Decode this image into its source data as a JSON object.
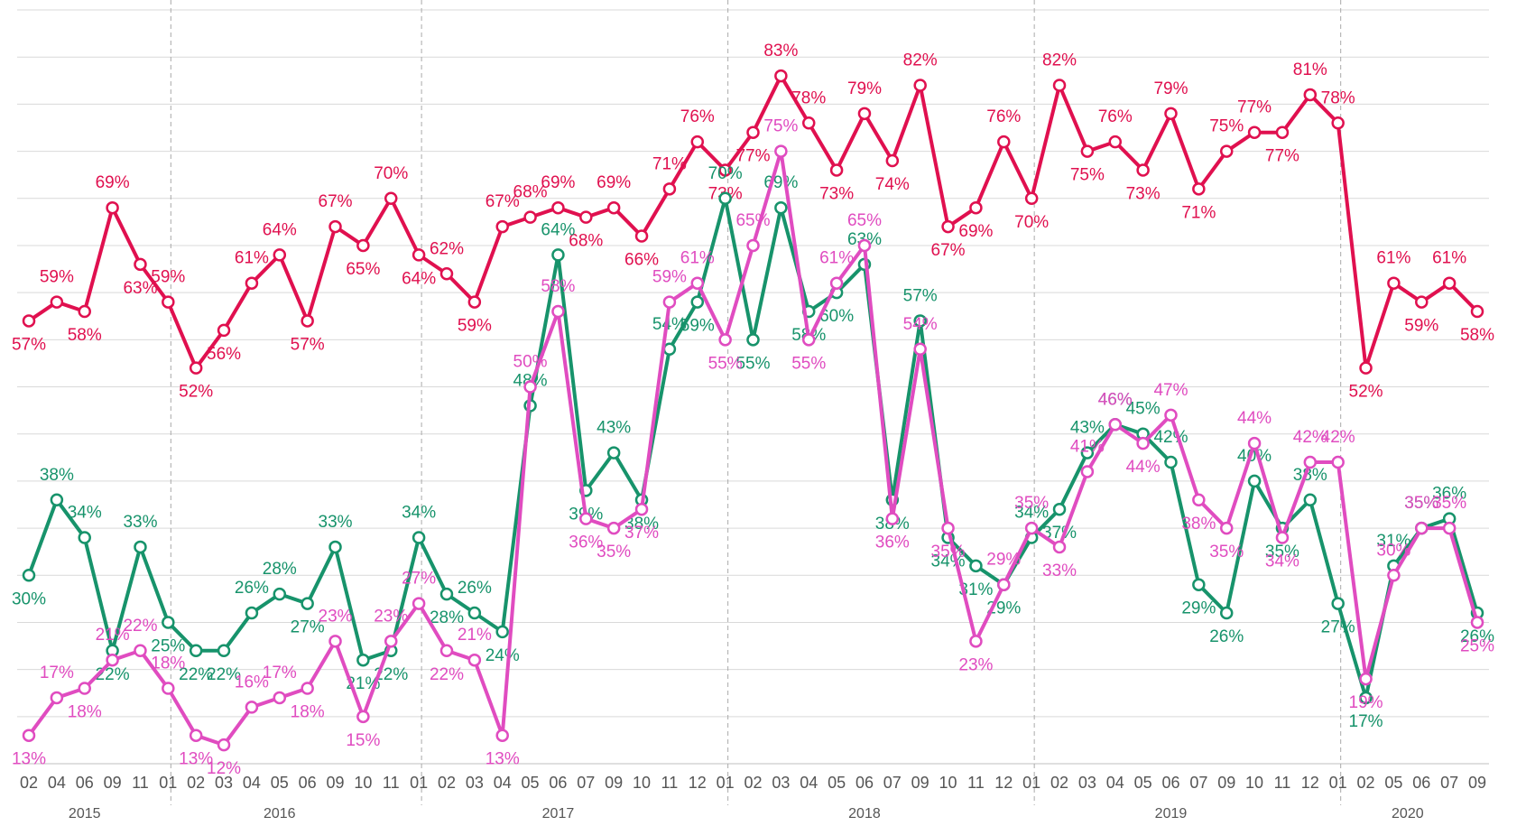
{
  "chart_data": {
    "type": "line",
    "categories": [
      "02",
      "04",
      "06",
      "09",
      "11",
      "01",
      "02",
      "03",
      "04",
      "05",
      "06",
      "09",
      "10",
      "11",
      "01",
      "02",
      "03",
      "04",
      "05",
      "06",
      "07",
      "09",
      "10",
      "11",
      "12",
      "01",
      "02",
      "03",
      "04",
      "05",
      "06",
      "07",
      "09",
      "10",
      "11",
      "12",
      "01",
      "02",
      "03",
      "04",
      "05",
      "06",
      "07",
      "09",
      "10",
      "11",
      "12",
      "01",
      "02",
      "05",
      "06",
      "07",
      "09"
    ],
    "category_groups": [
      {
        "label": "2015",
        "size": 5
      },
      {
        "label": "2016",
        "size": 9
      },
      {
        "label": "2017",
        "size": 11
      },
      {
        "label": "2018",
        "size": 11
      },
      {
        "label": "2019",
        "size": 11
      },
      {
        "label": "2020",
        "size": 6
      }
    ],
    "series": [
      {
        "color": "#e0104f",
        "values": [
          57,
          59,
          58,
          69,
          63,
          59,
          52,
          56,
          61,
          64,
          57,
          67,
          65,
          70,
          64,
          62,
          59,
          67,
          68,
          69,
          68,
          69,
          66,
          71,
          76,
          73,
          77,
          83,
          78,
          73,
          79,
          74,
          82,
          67,
          69,
          76,
          70,
          82,
          75,
          76,
          73,
          79,
          71,
          75,
          77,
          77,
          81,
          78,
          52,
          61,
          59,
          61,
          58
        ],
        "value_labels": [
          "57%",
          "59%",
          "58%",
          "69%",
          "63%",
          "59%",
          "52%",
          "56%",
          "61%",
          "64%",
          "57%",
          "67%",
          "65%",
          "70%",
          "64%",
          "62%",
          "59%",
          "67%",
          "68%",
          "69%",
          "68%",
          "69%",
          "66%",
          "71%",
          "76%",
          "73%",
          "77%",
          "83%",
          "78%",
          "73%",
          "79%",
          "74%",
          "82%",
          "67%",
          "69%",
          "76%",
          "70%",
          "82%",
          "75%",
          "76%",
          "73%",
          "79%",
          "71%",
          "75%",
          "77%",
          "77%",
          "81%",
          "78%",
          "52%",
          "61%",
          "59%",
          "61%",
          "58%"
        ]
      },
      {
        "color": "#17936b",
        "values": [
          30,
          38,
          34,
          22,
          33,
          25,
          22,
          22,
          26,
          28,
          27,
          33,
          21,
          22,
          34,
          28,
          26,
          24,
          48,
          64,
          39,
          43,
          38,
          54,
          59,
          70,
          55,
          69,
          58,
          60,
          63,
          38,
          57,
          34,
          31,
          29,
          34,
          37,
          43,
          46,
          45,
          42,
          29,
          26,
          40,
          35,
          38,
          27,
          17,
          31,
          35,
          36,
          26
        ],
        "value_labels": [
          "30%",
          "38%",
          "34%",
          "22%",
          "33%",
          "25%",
          "22%",
          "22%",
          "26%",
          "28%",
          "27%",
          "33%",
          "21%",
          "22%",
          "34%",
          "28%",
          "26%",
          "24%",
          "48%",
          "64%",
          "39%",
          "43%",
          "38%",
          "54%",
          "59%",
          "70%",
          "55%",
          "69%",
          "58%",
          "60%",
          "63%",
          "38%",
          "57%",
          "34%",
          "31%",
          "29%",
          "34%",
          "37%",
          "43%",
          "46%",
          "45%",
          "42%",
          "29%",
          "26%",
          "40%",
          "35%",
          "38%",
          "27%",
          "17%",
          "31%",
          "35%",
          "36%",
          "26%"
        ]
      },
      {
        "color": "#e04cc0",
        "values": [
          13,
          17,
          18,
          21,
          22,
          18,
          13,
          12,
          16,
          17,
          18,
          23,
          15,
          23,
          27,
          22,
          21,
          13,
          50,
          58,
          36,
          35,
          37,
          59,
          61,
          55,
          65,
          75,
          55,
          61,
          65,
          36,
          54,
          35,
          23,
          29,
          35,
          33,
          41,
          46,
          44,
          47,
          38,
          35,
          44,
          34,
          42,
          42,
          19,
          30,
          35,
          35,
          25
        ],
        "value_labels": [
          "13%",
          "17%",
          "18%",
          "21%",
          "22%",
          "18%",
          "13%",
          "12%",
          "16%",
          "17%",
          "18%",
          "23%",
          "15%",
          "23%",
          "27%",
          "22%",
          "21%",
          "13%",
          "50%",
          "58%",
          "36%",
          "35%",
          "37%",
          "59%",
          "61%",
          "55%",
          "65%",
          "75%",
          "55%",
          "61%",
          "65%",
          "36%",
          "54%",
          "35%",
          "23%",
          "29%",
          "35%",
          "33%",
          "41%",
          "46%",
          "44%",
          "47%",
          "38%",
          "35%",
          "44%",
          "34%",
          "42%",
          "42%",
          "19%",
          "30%",
          "35%",
          "35%",
          "25%"
        ]
      }
    ],
    "ylim": [
      10,
      90
    ],
    "yticks": [
      10,
      15,
      20,
      25,
      30,
      35,
      40,
      45,
      50,
      55,
      60,
      65,
      70,
      75,
      80,
      85,
      90
    ],
    "grid": true
  }
}
